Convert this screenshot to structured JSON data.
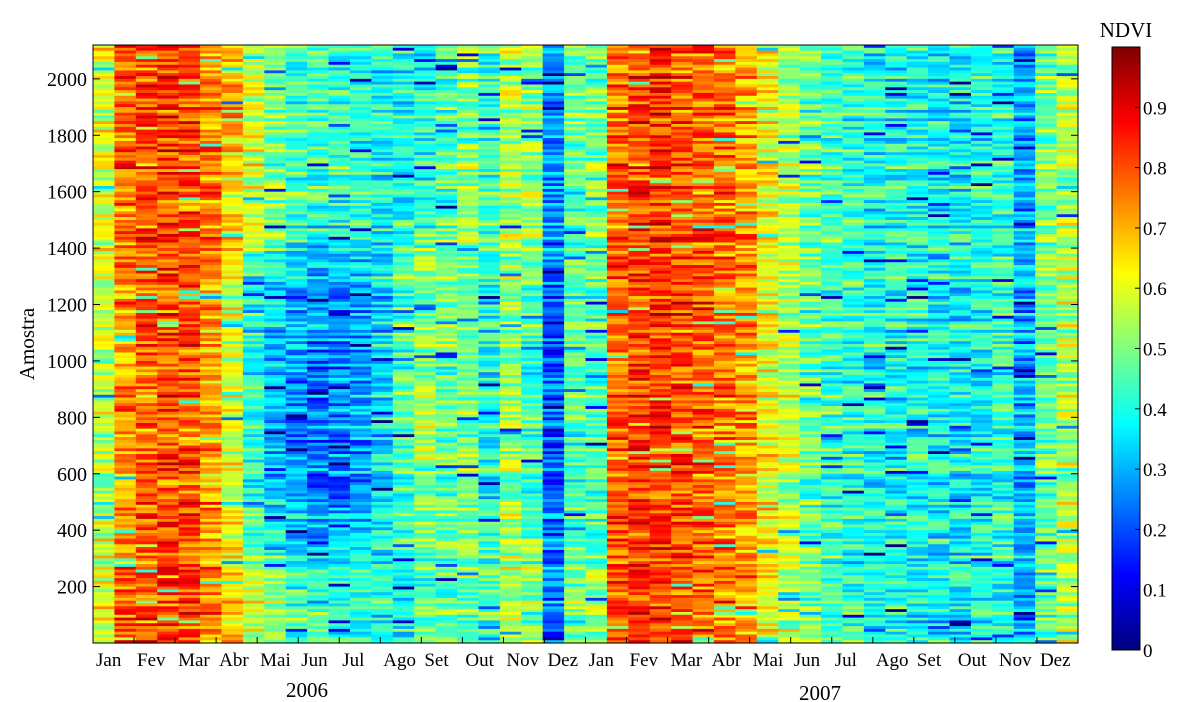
{
  "chart_data": {
    "type": "heatmap",
    "ylabel": "Amostra",
    "ylim": [
      0,
      2120
    ],
    "y_ticks": [
      200,
      400,
      600,
      800,
      1000,
      1200,
      1400,
      1600,
      1800,
      2000
    ],
    "x_tick_labels": [
      "Jan",
      "Fev",
      "Mar",
      "Abr",
      "Mai",
      "Jun",
      "Jul",
      "Ago",
      "Set",
      "Out",
      "Nov",
      "Dez",
      "Jan",
      "Fev",
      "Mar",
      "Abr",
      "Mai",
      "Jun",
      "Jul",
      "Ago",
      "Set",
      "Out",
      "Nov",
      "Dez"
    ],
    "year_labels": [
      "2006",
      "2007"
    ],
    "colorbar": {
      "title": "NDVI",
      "range": [
        0,
        1
      ],
      "ticks": [
        "0",
        "0.1",
        "0.2",
        "0.3",
        "0.4",
        "0.5",
        "0.6",
        "0.7",
        "0.8",
        "0.9"
      ],
      "colormap": "jet"
    },
    "samples_per_year": 23,
    "value_profile_high_sample_bands": [
      0.6,
      0.78,
      0.8,
      0.82,
      0.8,
      0.76,
      0.68,
      0.58,
      0.52,
      0.46,
      0.44,
      0.43,
      0.42,
      0.4,
      0.4,
      0.42,
      0.46,
      0.5,
      0.45,
      0.55,
      0.52,
      0.25,
      0.48,
      0.5,
      0.78,
      0.82,
      0.82,
      0.8,
      0.78,
      0.76,
      0.72,
      0.62,
      0.55,
      0.48,
      0.44,
      0.42,
      0.4,
      0.4,
      0.4,
      0.38,
      0.38,
      0.4,
      0.42,
      0.3,
      0.48,
      0.55
    ],
    "value_profile_low_sample_bands": [
      0.55,
      0.74,
      0.78,
      0.8,
      0.8,
      0.72,
      0.58,
      0.4,
      0.32,
      0.28,
      0.25,
      0.26,
      0.28,
      0.35,
      0.45,
      0.52,
      0.48,
      0.5,
      0.4,
      0.52,
      0.45,
      0.22,
      0.45,
      0.45,
      0.78,
      0.82,
      0.82,
      0.8,
      0.78,
      0.76,
      0.72,
      0.62,
      0.55,
      0.48,
      0.44,
      0.42,
      0.4,
      0.4,
      0.4,
      0.38,
      0.38,
      0.4,
      0.42,
      0.3,
      0.48,
      0.55
    ]
  }
}
